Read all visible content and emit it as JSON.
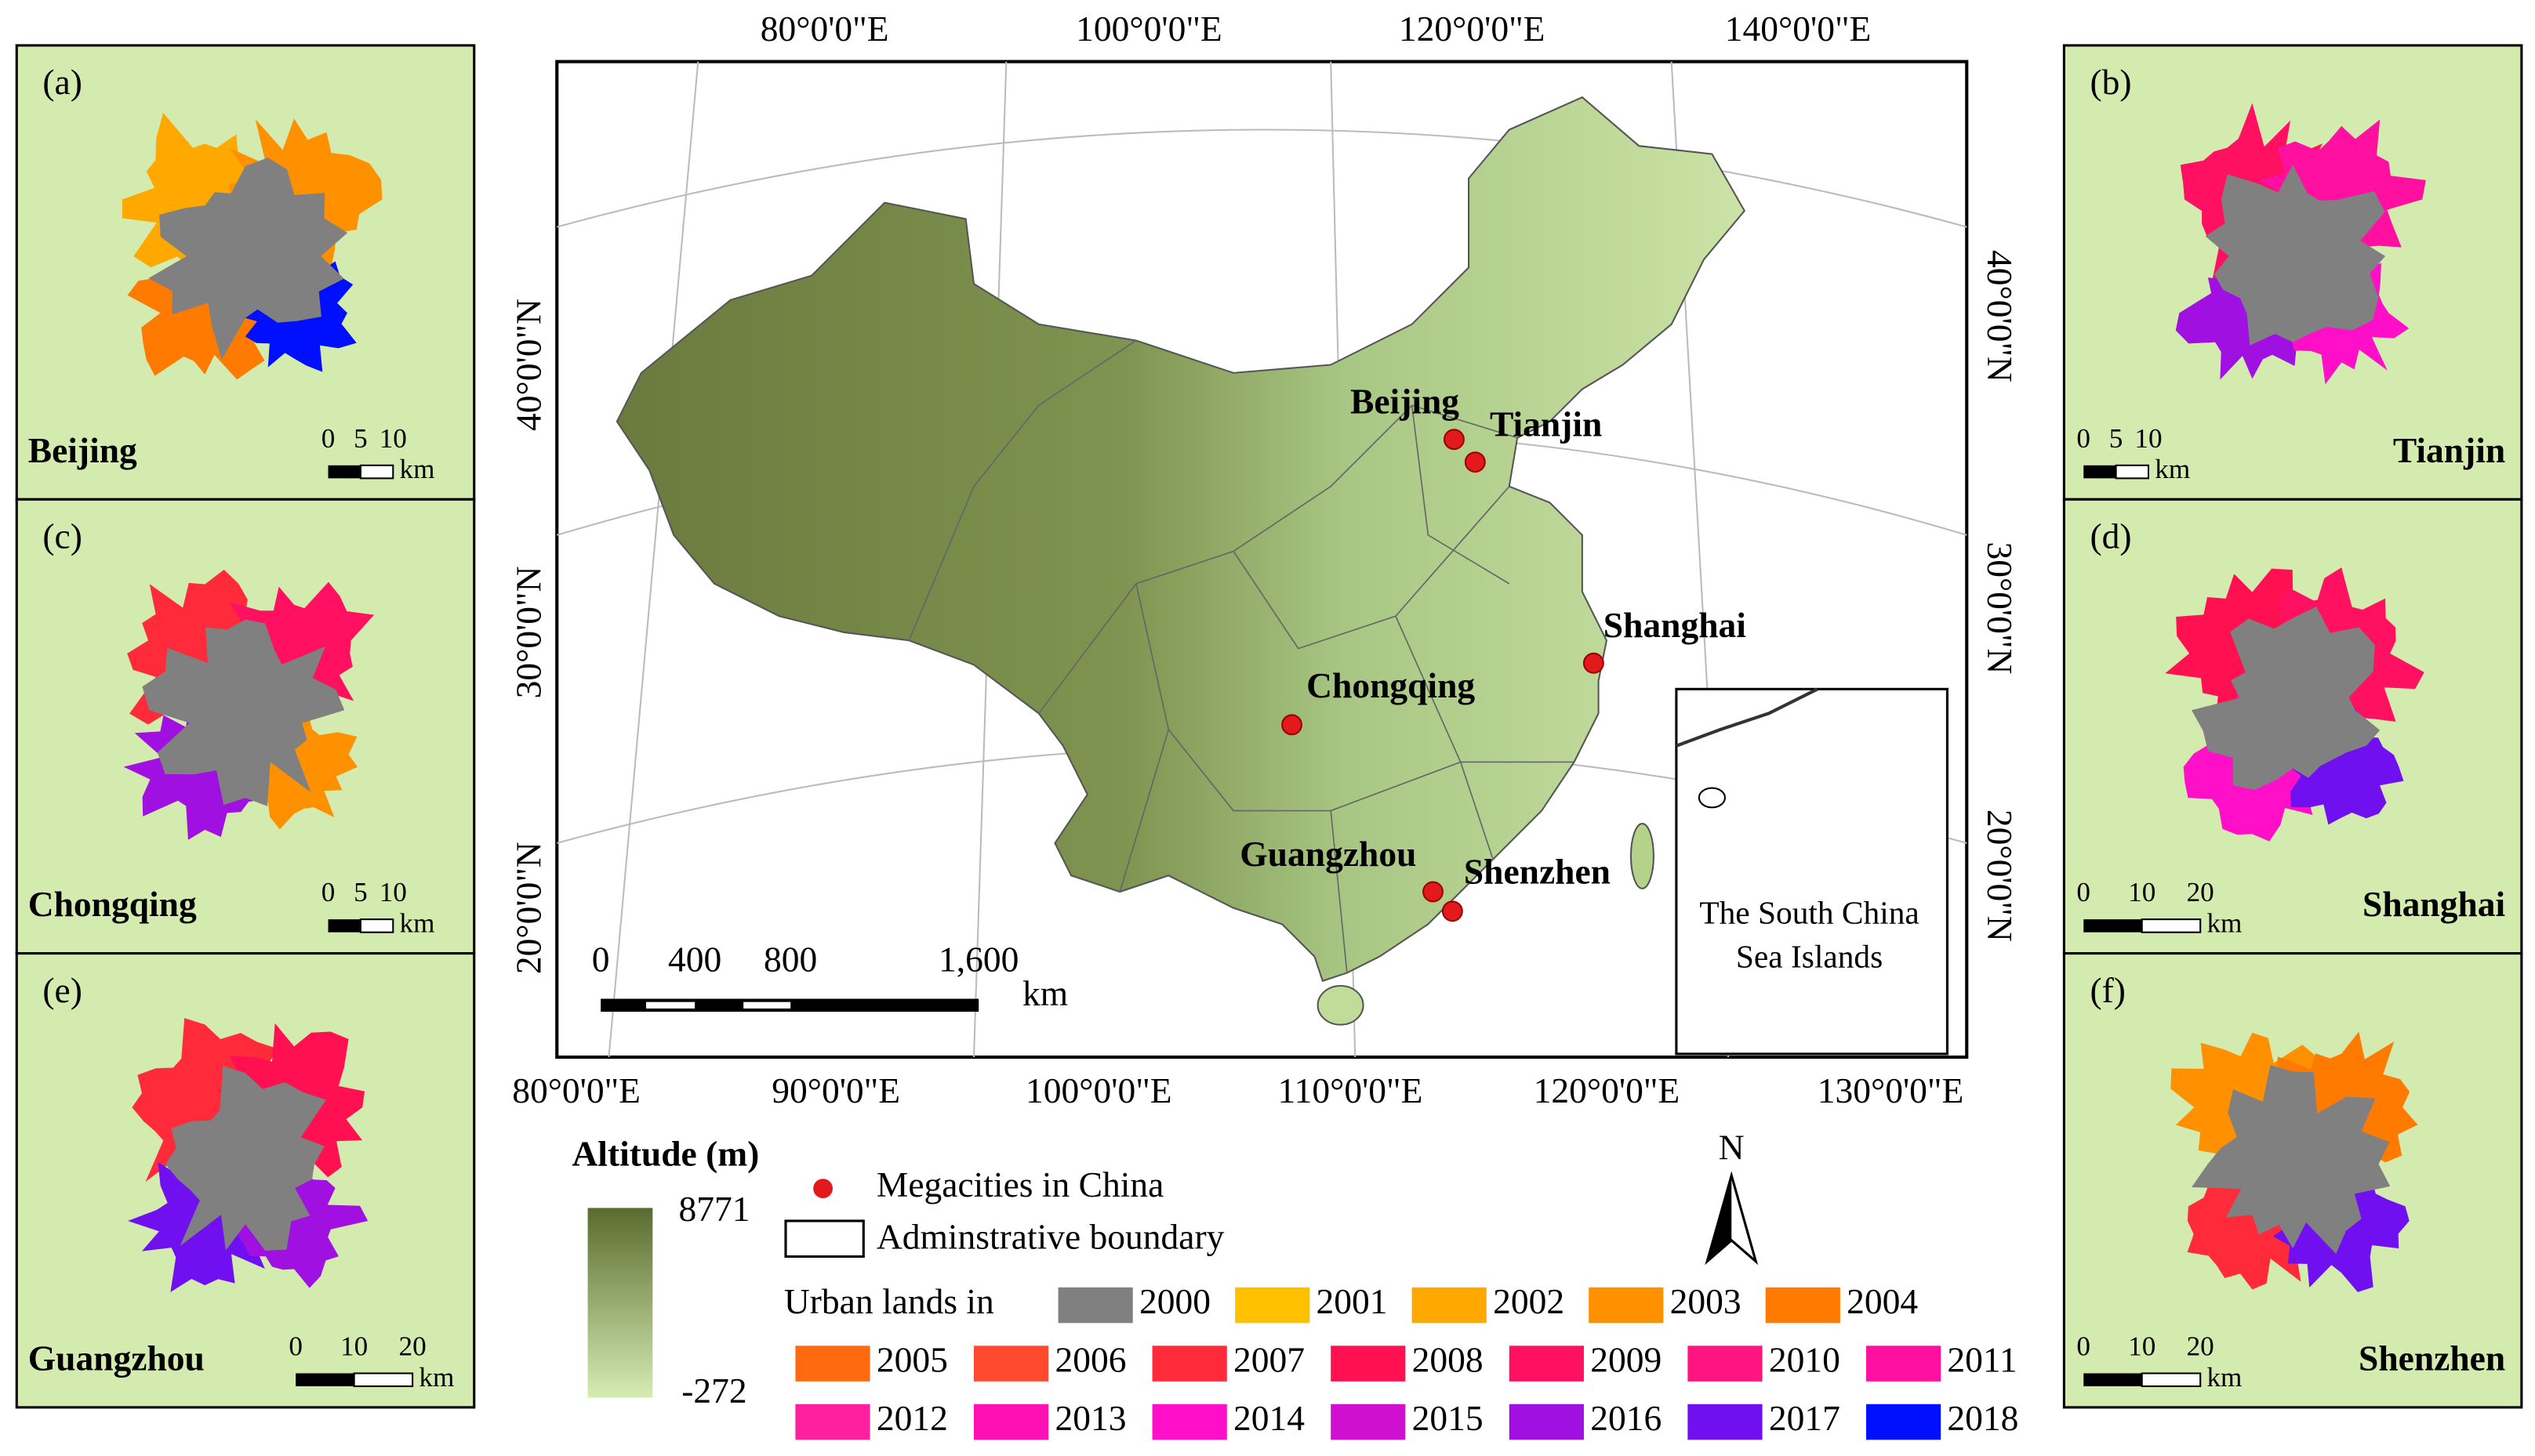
{
  "panels": [
    {
      "tag": "(a)",
      "city": "Beijing",
      "scale_ticks": [
        "0",
        "5",
        "10"
      ],
      "unit": "km"
    },
    {
      "tag": "(c)",
      "city": "Chongqing",
      "scale_ticks": [
        "0",
        "5",
        "10"
      ],
      "unit": "km"
    },
    {
      "tag": "(e)",
      "city": "Guangzhou",
      "scale_ticks": [
        "0",
        "10",
        "20"
      ],
      "unit": "km"
    },
    {
      "tag": "(b)",
      "city": "Tianjin",
      "scale_ticks": [
        "0",
        "5",
        "10"
      ],
      "unit": "km"
    },
    {
      "tag": "(d)",
      "city": "Shanghai",
      "scale_ticks": [
        "0",
        "10",
        "20"
      ],
      "unit": "km"
    },
    {
      "tag": "(f)",
      "city": "Shenzhen",
      "scale_ticks": [
        "0",
        "10",
        "20"
      ],
      "unit": "km"
    }
  ],
  "main_map": {
    "top_labels": [
      "80°0'0\"E",
      "100°0'0\"E",
      "120°0'0\"E",
      "140°0'0\"E"
    ],
    "bottom_labels": [
      "80°0'0\"E",
      "90°0'0\"E",
      "100°0'0\"E",
      "110°0'0\"E",
      "120°0'0\"E",
      "130°0'0\"E"
    ],
    "left_labels": [
      "40°0'0\"N",
      "30°0'0\"N",
      "20°0'0\"N"
    ],
    "right_labels": [
      "40°0'0\"N",
      "30°0'0\"N",
      "20°0'0\"N"
    ],
    "cities": [
      "Beijing",
      "Tianjin",
      "Shanghai",
      "Chongqing",
      "Guangzhou",
      "Shenzhen"
    ],
    "scale_ticks": [
      "0",
      "400",
      "800",
      "1,600"
    ],
    "scale_unit": "km",
    "inset_label": [
      "The South China",
      "Sea Islands"
    ],
    "north": "N"
  },
  "legend": {
    "altitude_title": "Altitude (m)",
    "altitude_max": 8771,
    "altitude_min": -272,
    "megacities": "Megacities in China",
    "boundary": "Adminstrative boundary",
    "urban_title": "Urban lands in",
    "years": [
      {
        "label": "2000",
        "color": "#808080"
      },
      {
        "label": "2001",
        "color": "#ffc000"
      },
      {
        "label": "2002",
        "color": "#ffa800"
      },
      {
        "label": "2003",
        "color": "#ff9000"
      },
      {
        "label": "2004",
        "color": "#ff7a00"
      },
      {
        "label": "2005",
        "color": "#ff6a10"
      },
      {
        "label": "2006",
        "color": "#ff4a30"
      },
      {
        "label": "2007",
        "color": "#ff2a3a"
      },
      {
        "label": "2008",
        "color": "#ff1050"
      },
      {
        "label": "2009",
        "color": "#ff1060"
      },
      {
        "label": "2010",
        "color": "#ff1480"
      },
      {
        "label": "2011",
        "color": "#ff10a0"
      },
      {
        "label": "2012",
        "color": "#ff20a0"
      },
      {
        "label": "2013",
        "color": "#ff10b4"
      },
      {
        "label": "2014",
        "color": "#ff10c8"
      },
      {
        "label": "2015",
        "color": "#d010d0"
      },
      {
        "label": "2016",
        "color": "#a010e0"
      },
      {
        "label": "2017",
        "color": "#7010f0"
      },
      {
        "label": "2018",
        "color": "#0010ff"
      }
    ]
  }
}
